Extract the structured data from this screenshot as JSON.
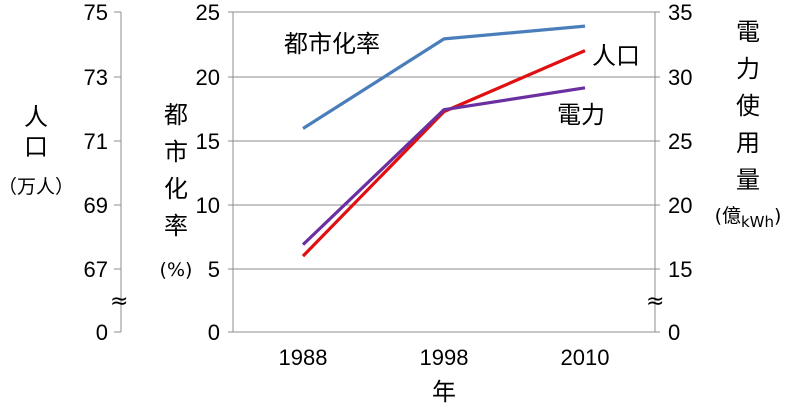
{
  "chart_data": {
    "type": "line",
    "x": [
      "1988",
      "1998",
      "2010"
    ],
    "xlabel": "年",
    "axes": {
      "left_outer": {
        "label_chars": [
          "人",
          "口"
        ],
        "unit": "（万人）",
        "ticks": [
          "75",
          "73",
          "71",
          "69",
          "67",
          "0"
        ],
        "break_symbol": "≈"
      },
      "left_inner": {
        "label_chars": [
          "都",
          "市",
          "化",
          "率"
        ],
        "unit": "(%)",
        "ticks": [
          "25",
          "20",
          "15",
          "10",
          "5",
          "0"
        ],
        "range": [
          0,
          25
        ]
      },
      "right": {
        "label_chars": [
          "電",
          "力",
          "使",
          "用",
          "量"
        ],
        "unit_prefix": "(億",
        "unit_sub": "kWh",
        "unit_suffix": ")",
        "ticks": [
          "35",
          "30",
          "25",
          "20",
          "15",
          "0"
        ],
        "break_symbol": "≈"
      }
    },
    "series": [
      {
        "name": "都市化率",
        "axis": "left_inner",
        "color": "#4a7ebb",
        "values": [
          15.9,
          22.9,
          23.9
        ]
      },
      {
        "name": "人口",
        "axis": "left_outer",
        "color": "#e01010",
        "values": [
          67.4,
          71.9,
          73.8
        ]
      },
      {
        "name": "電力",
        "axis": "right",
        "color": "#6a2fa0",
        "values": [
          16.9,
          27.4,
          29.1
        ]
      }
    ],
    "grid": true
  }
}
